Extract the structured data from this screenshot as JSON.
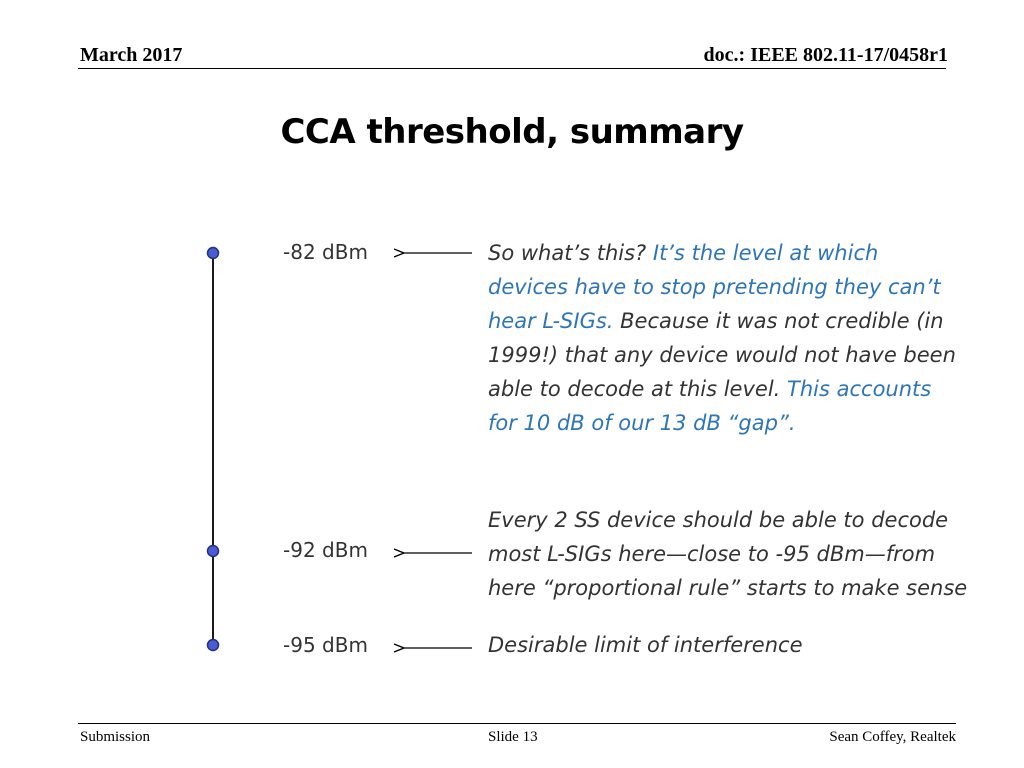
{
  "header": {
    "date": "March 2017",
    "doc": "doc.: IEEE 802.11-17/0458r1"
  },
  "title": "CCA threshold, summary",
  "levels": [
    {
      "label": "-82 dBm"
    },
    {
      "label": "-92 dBm"
    },
    {
      "label": "-95 dBm"
    }
  ],
  "notes": {
    "n1": {
      "l1a": "So what’s this? ",
      "l1b": "It’s the level at which",
      "l2": "devices have to stop pretending they can’t",
      "l3a": "hear L-SIGs.",
      "l3b": " Because it was not credible (in",
      "l4": "1999!) that any device would not have been",
      "l5a": "able to decode at this level. ",
      "l5b": "This accounts",
      "l6": "for 10 dB of our 13 dB “gap”."
    },
    "n2": {
      "l1": "Every 2 SS device should be able to decode",
      "l2": "most L-SIGs here—close to -95 dBm—from",
      "l3": "here “proportional rule” starts to make sense"
    },
    "n3": "Desirable limit of interference"
  },
  "footer": {
    "submission": "Submission",
    "slide": "Slide 13",
    "author": "Sean Coffey, Realtek"
  },
  "colors": {
    "accent_text": "#2e75b6",
    "marker_fill": "#4a5bd6",
    "marker_stroke": "#23307a"
  }
}
